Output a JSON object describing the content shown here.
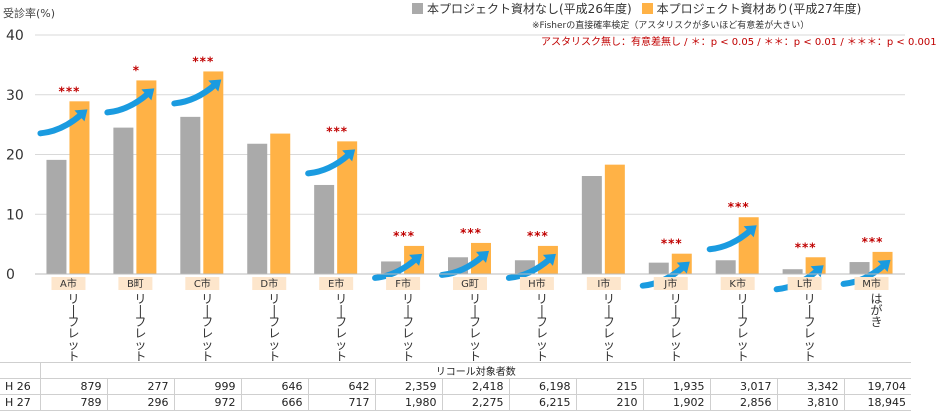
{
  "chart_data": {
    "type": "bar",
    "ylabel": "受診率(%)",
    "ylim": [
      0,
      40
    ],
    "yticks": [
      0,
      10,
      20,
      30,
      40
    ],
    "grid": true,
    "legend_position": "top-right",
    "categories": [
      {
        "city": "A市",
        "method": "リーフレット"
      },
      {
        "city": "B町",
        "method": "リーフレット"
      },
      {
        "city": "C市",
        "method": "リーフレット"
      },
      {
        "city": "D市",
        "method": "リーフレット"
      },
      {
        "city": "E市",
        "method": "リーフレット"
      },
      {
        "city": "F市",
        "method": "リーフレット"
      },
      {
        "city": "G町",
        "method": "リーフレット"
      },
      {
        "city": "H市",
        "method": "リーフレット"
      },
      {
        "city": "I市",
        "method": "リーフレット"
      },
      {
        "city": "J市",
        "method": "リーフレット"
      },
      {
        "city": "K市",
        "method": "リーフレット"
      },
      {
        "city": "L市",
        "method": "リーフレット"
      },
      {
        "city": "M市",
        "method": "はがき"
      }
    ],
    "series": [
      {
        "name": "本プロジェクト資材なし(平成26年度)",
        "color": "#aaaaaa",
        "values": [
          19.1,
          24.5,
          26.3,
          21.8,
          14.9,
          2.1,
          2.8,
          2.3,
          16.4,
          1.9,
          2.3,
          0.8,
          2.0
        ]
      },
      {
        "name": "本プロジェクト資材あり(平成27年度)",
        "color": "#ffb246",
        "values": [
          28.9,
          32.4,
          33.9,
          23.5,
          22.2,
          4.7,
          5.2,
          4.7,
          18.3,
          3.4,
          9.5,
          2.8,
          3.7
        ]
      }
    ],
    "significance": [
      "***",
      "*",
      "***",
      "",
      "***",
      "***",
      "***",
      "***",
      "",
      "***",
      "***",
      "***",
      "***"
    ],
    "arrow_color": "#1a9be0",
    "significance_color": "#c00000",
    "label_box_color": "#fde6cc"
  },
  "note": {
    "line1": "※Fisherの直接確率検定（アスタリスクが多いほど有意差が大きい）",
    "line2": "アスタリスク無し：有意差無し / ＊：p < 0.05 / ＊＊：p < 0.01 / ＊＊＊：p < 0.001"
  },
  "table": {
    "header": "リコール対象者数",
    "rows": [
      {
        "label": "H 26",
        "values": [
          "879",
          "277",
          "999",
          "646",
          "642",
          "2,359",
          "2,418",
          "6,198",
          "215",
          "1,935",
          "3,017",
          "3,342",
          "19,704"
        ]
      },
      {
        "label": "H 27",
        "values": [
          "789",
          "296",
          "972",
          "666",
          "717",
          "1,980",
          "2,275",
          "6,215",
          "210",
          "1,902",
          "2,856",
          "3,810",
          "18,945"
        ]
      }
    ]
  }
}
